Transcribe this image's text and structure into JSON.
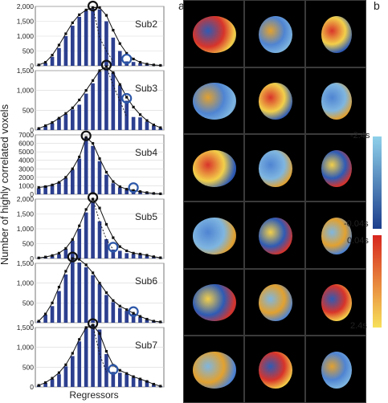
{
  "panel_labels": {
    "a": "a",
    "b": "b"
  },
  "ylabel": "Number of highly correlated voxels",
  "xlabel": "Regressors",
  "colorbar": {
    "neg_top": "-2.4s",
    "neg_bottom": "-0.04s",
    "pos_top": "0.04s",
    "pos_bottom": "2.4s",
    "neg_colors": [
      "#8fd0ea",
      "#1c3e8c"
    ],
    "pos_colors": [
      "#d7261e",
      "#f7e15a"
    ]
  },
  "colors": {
    "bar": "#2c3f8f",
    "line": "#111111",
    "marker_black": "#111111",
    "marker_blue": "#2c57a8"
  },
  "chart_data": [
    {
      "type": "bar",
      "title": "Sub2",
      "ylim": [
        0,
        2000
      ],
      "yticks": [
        "0",
        "500",
        "1,000",
        "1,500",
        "2,000"
      ],
      "bars": [
        30,
        90,
        300,
        600,
        1000,
        1350,
        1650,
        1870,
        1920,
        1900,
        1500,
        950,
        500,
        150,
        130,
        90,
        50,
        20,
        10
      ],
      "line": [
        30,
        120,
        360,
        700,
        1080,
        1450,
        1720,
        1880,
        1960,
        1960,
        1700,
        1200,
        750,
        420,
        230,
        120,
        60,
        30,
        15
      ],
      "dashed": [
        950,
        500,
        150
      ],
      "peak_index": 8,
      "blue_index": 13
    },
    {
      "type": "bar",
      "title": "Sub3",
      "ylim": [
        0,
        1500
      ],
      "yticks": [
        "0",
        "500",
        "1,000",
        "1,500"
      ],
      "bars": [
        30,
        100,
        170,
        300,
        400,
        520,
        640,
        920,
        1180,
        1480,
        1560,
        1450,
        1130,
        740,
        330,
        320,
        210,
        120,
        50
      ],
      "line": [
        40,
        110,
        190,
        300,
        420,
        560,
        760,
        1000,
        1250,
        1500,
        1600,
        1450,
        1150,
        830,
        580,
        390,
        240,
        130,
        60
      ],
      "dashed": [
        1130,
        740,
        330
      ],
      "peak_index": 10,
      "blue_index": 13
    },
    {
      "type": "bar",
      "title": "Sub4",
      "ylim": [
        0,
        7000
      ],
      "yticks": [
        "0",
        "1000",
        "2000",
        "3000",
        "4000",
        "5000",
        "6000",
        "7000"
      ],
      "bars": [
        700,
        1000,
        1100,
        1400,
        1900,
        2900,
        4200,
        6700,
        5700,
        3900,
        2300,
        1300,
        800,
        600,
        500,
        350,
        200,
        100,
        50
      ],
      "line": [
        800,
        900,
        1100,
        1400,
        2000,
        3000,
        4400,
        6700,
        6000,
        4200,
        2600,
        1500,
        900,
        600,
        450,
        320,
        200,
        100,
        60
      ],
      "dashed": [],
      "peak_index": 7,
      "blue_index": 14
    },
    {
      "type": "bar",
      "title": "Sub5",
      "ylim": [
        0,
        2000
      ],
      "yticks": [
        "0",
        "500",
        "1,000",
        "1,500",
        "2,000"
      ],
      "bars": [
        20,
        40,
        90,
        140,
        320,
        600,
        1000,
        1550,
        1900,
        1250,
        650,
        300,
        260,
        180,
        150,
        140,
        100,
        60,
        20
      ],
      "line": [
        20,
        50,
        100,
        180,
        340,
        640,
        1100,
        1650,
        2000,
        1700,
        1150,
        700,
        400,
        260,
        180,
        150,
        110,
        60,
        25
      ],
      "dashed": [
        1250,
        650,
        300
      ],
      "peak_index": 8,
      "blue_index": 11
    },
    {
      "type": "bar",
      "title": "Sub6",
      "ylim": [
        0,
        1500
      ],
      "yticks": [
        "0",
        "500",
        "1,000",
        "1,500"
      ],
      "bars": [
        40,
        200,
        420,
        800,
        1220,
        1640,
        1520,
        1400,
        1200,
        980,
        700,
        520,
        370,
        300,
        220,
        150,
        90,
        40,
        20
      ],
      "line": [
        40,
        220,
        500,
        900,
        1300,
        1620,
        1600,
        1460,
        1260,
        1000,
        760,
        560,
        420,
        330,
        240,
        160,
        90,
        40,
        20
      ],
      "dashed": [],
      "peak_index": 5,
      "blue_index": 14
    },
    {
      "type": "bar",
      "title": "Sub7",
      "ylim": [
        0,
        1500
      ],
      "yticks": [
        "0",
        "500",
        "1,000",
        "1,500"
      ],
      "bars": [
        40,
        100,
        200,
        320,
        520,
        780,
        1150,
        1480,
        1580,
        1450,
        830,
        380,
        360,
        330,
        250,
        200,
        150,
        70,
        20
      ],
      "line": [
        40,
        110,
        220,
        360,
        560,
        850,
        1200,
        1500,
        1560,
        1350,
        900,
        550,
        420,
        340,
        260,
        200,
        140,
        70,
        20
      ],
      "dashed": [
        830,
        380
      ],
      "peak_index": 8,
      "blue_index": 11
    }
  ]
}
